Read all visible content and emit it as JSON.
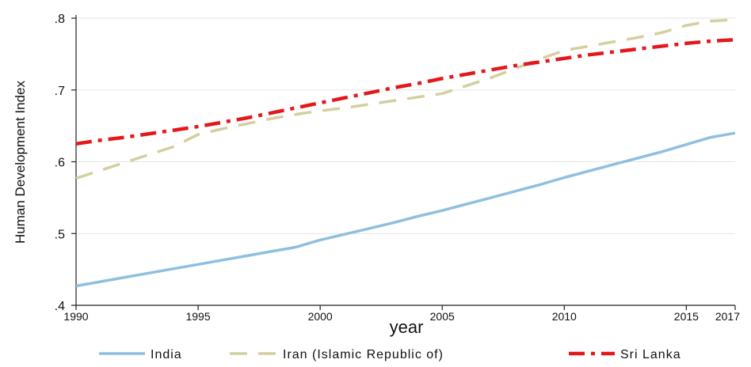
{
  "chart_data": {
    "type": "line",
    "title": "",
    "xlabel": "year",
    "ylabel": "Human Development Index",
    "xlim": [
      1990,
      2017
    ],
    "ylim": [
      0.4,
      0.8
    ],
    "x_ticks": [
      1990,
      1995,
      2000,
      2005,
      2010,
      2015,
      2017
    ],
    "x_tick_labels": [
      "1990",
      "1995",
      "2000",
      "2005",
      "2010",
      "2015",
      "2017"
    ],
    "y_ticks": [
      0.4,
      0.5,
      0.6,
      0.7,
      0.8
    ],
    "y_tick_labels": [
      ".4",
      ".5",
      ".6",
      ".7",
      ".8"
    ],
    "grid": true,
    "legend_position": "bottom",
    "x": [
      1990,
      1991,
      1992,
      1993,
      1994,
      1995,
      1996,
      1997,
      1998,
      1999,
      2000,
      2001,
      2002,
      2003,
      2004,
      2005,
      2006,
      2007,
      2008,
      2009,
      2010,
      2011,
      2012,
      2013,
      2014,
      2015,
      2016,
      2017
    ],
    "series": [
      {
        "name": "India",
        "color": "#8fbfe0",
        "dash": "solid",
        "values": [
          0.427,
          0.433,
          0.439,
          0.445,
          0.451,
          0.457,
          0.463,
          0.469,
          0.475,
          0.481,
          0.491,
          0.499,
          0.507,
          0.515,
          0.524,
          0.532,
          0.541,
          0.55,
          0.559,
          0.568,
          0.578,
          0.587,
          0.596,
          0.605,
          0.614,
          0.624,
          0.634,
          0.64
        ]
      },
      {
        "name": "Iran (Islamic Republic of)",
        "color": "#d4cfa0",
        "dash": "dash",
        "values": [
          0.577,
          0.588,
          0.599,
          0.61,
          0.621,
          0.638,
          0.646,
          0.653,
          0.66,
          0.666,
          0.671,
          0.675,
          0.68,
          0.685,
          0.69,
          0.695,
          0.706,
          0.717,
          0.73,
          0.743,
          0.755,
          0.761,
          0.767,
          0.773,
          0.78,
          0.79,
          0.796,
          0.798
        ]
      },
      {
        "name": "Sri Lanka",
        "color": "#e4181b",
        "dash": "dashdot",
        "values": [
          0.625,
          0.63,
          0.634,
          0.639,
          0.644,
          0.649,
          0.655,
          0.661,
          0.668,
          0.675,
          0.682,
          0.689,
          0.696,
          0.703,
          0.709,
          0.716,
          0.722,
          0.728,
          0.734,
          0.739,
          0.744,
          0.749,
          0.753,
          0.757,
          0.761,
          0.765,
          0.768,
          0.77
        ]
      }
    ]
  }
}
